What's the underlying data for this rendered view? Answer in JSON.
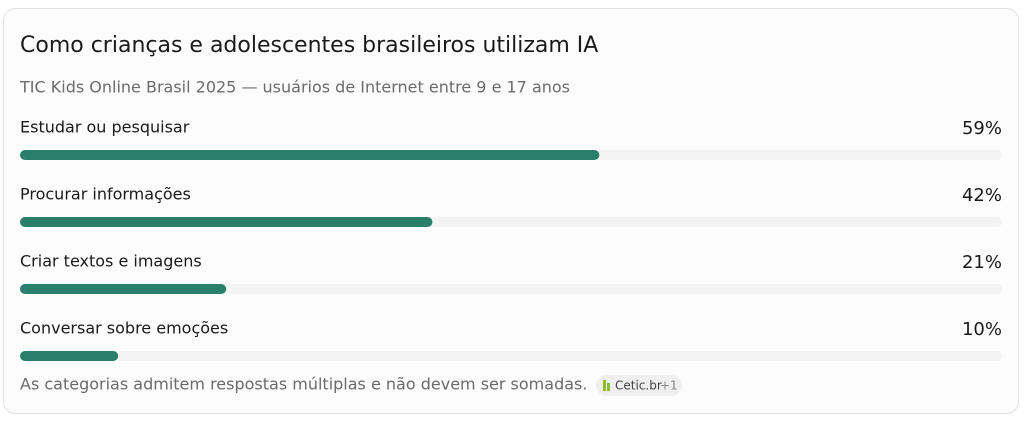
{
  "chart_data": {
    "type": "bar",
    "title": "Como crianças e adolescentes brasileiros utilizam IA",
    "subtitle": "TIC Kids Online Brasil 2025 — usuários de Internet entre 9 e 17 anos",
    "categories": [
      "Estudar ou pesquisar",
      "Procurar informações",
      "Criar textos e imagens",
      "Conversar sobre emoções"
    ],
    "values": [
      59,
      42,
      21,
      10
    ],
    "value_labels": [
      "59%",
      "42%",
      "21%",
      "10%"
    ],
    "color": "#2a7f6b",
    "xlim": [
      0,
      100
    ],
    "note": "As categorias admitem respostas múltiplas e não devem ser somadas.",
    "source": "Cetic.br",
    "source_extra": "+1"
  }
}
